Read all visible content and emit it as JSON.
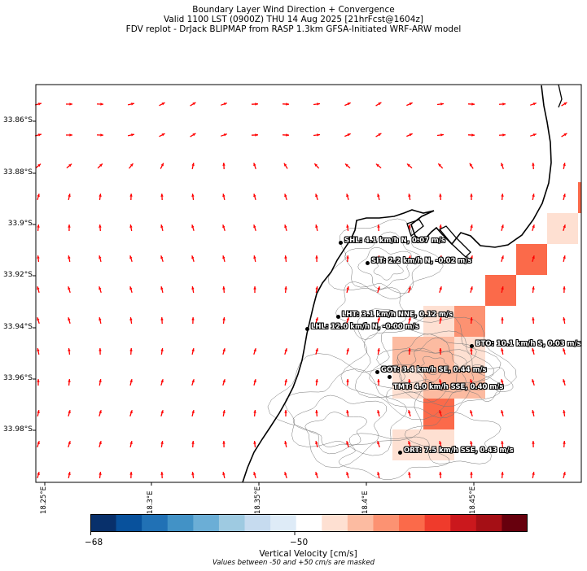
{
  "header": {
    "line1": "Boundary Layer Wind Direction + Convergence",
    "line2": "Valid 1100 LST (0900Z) THU 14 Aug 2025 [21hrFcst@1604z]",
    "line3": "FDV replot - DrJack BLIPMAP from RASP 1.3km GFSA-Initiated WRF-ARW model"
  },
  "map": {
    "lat_ticks": [
      "33.86°S",
      "33.88°S",
      "33.9°S",
      "33.92°S",
      "33.94°S",
      "33.96°S",
      "33.98°S"
    ],
    "lon_ticks": [
      "18.25°E",
      "18.3°E",
      "18.35°E",
      "18.4°E",
      "18.45°E"
    ],
    "arrow_color": "#ff0000",
    "coast_color": "#000000",
    "contour_color": "#777777"
  },
  "stations": [
    {
      "id": "SHL",
      "label": "SHL: 4.1 km/h N, 0.07 m/s"
    },
    {
      "id": "SIT",
      "label": "SIT: 2.2 km/h N, -0.02 m/s"
    },
    {
      "id": "LHT",
      "label": "LHT: 3.1 km/h NNE, 0.12 m/s"
    },
    {
      "id": "LHL",
      "label": "LHL: 12.0 km/h N, -0.00 m/s"
    },
    {
      "id": "BTO",
      "label": "BTO: 10.1 km/h S, 0.03 m/s"
    },
    {
      "id": "GOT",
      "label": "GOT: 3.4 km/h SE, 0.44 m/s"
    },
    {
      "id": "TMT",
      "label": "TMT: 4.0 km/h SSE, 0.40 m/s"
    },
    {
      "id": "ORT",
      "label": "ORT: 7.5 km/h SSE, 0.43 m/s"
    }
  ],
  "colorbar": {
    "tick_min": "−68",
    "tick_mid": "−50",
    "label": "Vertical Velocity [cm/s]",
    "note": "Values between -50 and +50 cm/s are masked",
    "colors": [
      "#08306b",
      "#08519c",
      "#2171b5",
      "#4292c6",
      "#6baed6",
      "#9ecae1",
      "#c6dbef",
      "#deebf7",
      "#ffffff",
      "#fee0d2",
      "#fcbba1",
      "#fc9272",
      "#fb6a4a",
      "#ef3b2c",
      "#cb181d",
      "#a50f15",
      "#67000d"
    ]
  }
}
